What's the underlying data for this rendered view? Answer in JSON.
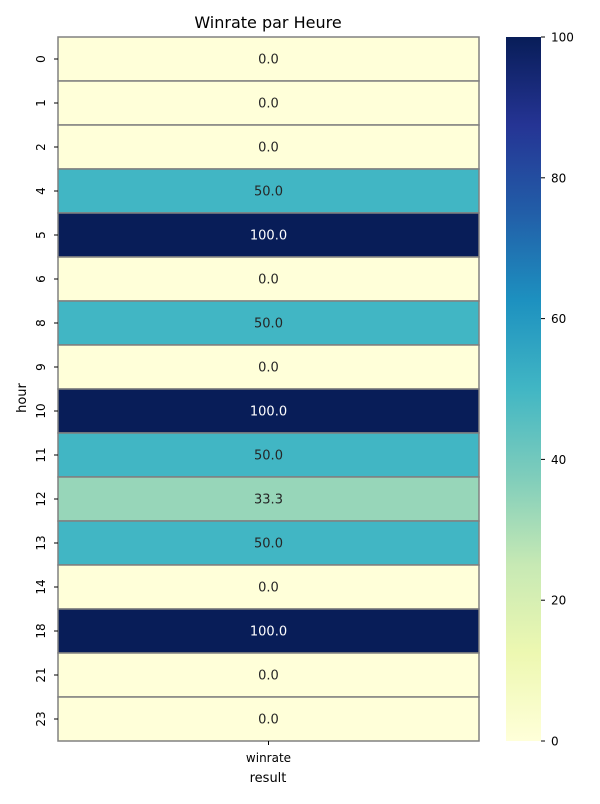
{
  "chart_data": {
    "type": "heatmap",
    "title": "Winrate par Heure",
    "xlabel": "result",
    "ylabel": "hour",
    "x_categories": [
      "winrate"
    ],
    "y_categories": [
      "0",
      "1",
      "2",
      "4",
      "5",
      "6",
      "8",
      "9",
      "10",
      "11",
      "12",
      "13",
      "14",
      "18",
      "21",
      "23"
    ],
    "values": [
      0.0,
      0.0,
      0.0,
      50.0,
      100.0,
      0.0,
      50.0,
      0.0,
      100.0,
      50.0,
      33.3,
      50.0,
      0.0,
      100.0,
      0.0,
      0.0
    ],
    "value_labels": [
      "0.0",
      "0.0",
      "0.0",
      "50.0",
      "100.0",
      "0.0",
      "50.0",
      "0.0",
      "100.0",
      "50.0",
      "33.3",
      "50.0",
      "0.0",
      "100.0",
      "0.0",
      "0.0"
    ],
    "colormap": "YlGnBu",
    "vmin": 0,
    "vmax": 100,
    "colorbar_ticks": [
      "0",
      "20",
      "40",
      "60",
      "80",
      "100"
    ],
    "cell_border_color": "#808080"
  }
}
